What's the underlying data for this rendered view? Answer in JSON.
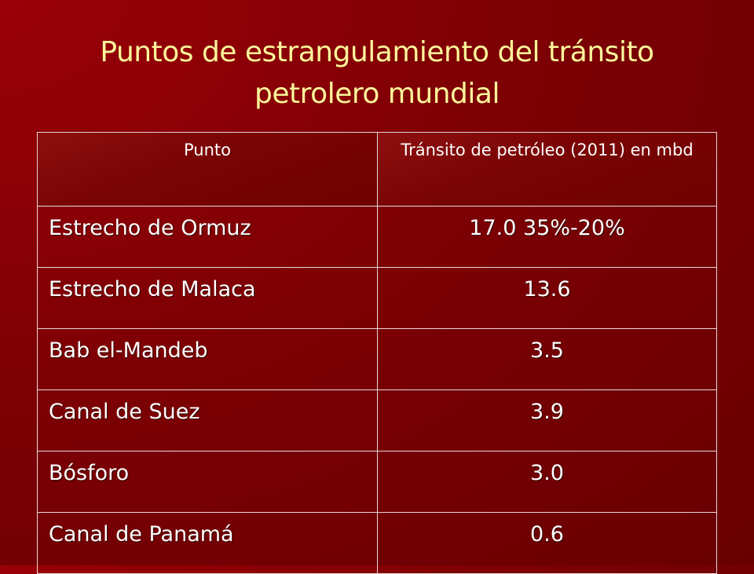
{
  "header": {
    "title": "Puntos de estrangulamiento del tránsito petrolero mundial"
  },
  "table": {
    "columns": [
      "Punto",
      "Tránsito de petróleo (2011) en mbd"
    ],
    "rows": [
      [
        "Estrecho de Ormuz",
        "17.0 35%-20%"
      ],
      [
        "Estrecho de Malaca",
        "13.6"
      ],
      [
        "Bab el-Mandeb",
        "3.5"
      ],
      [
        "Canal de Suez",
        "3.9"
      ],
      [
        "Bósforo",
        "3.0"
      ],
      [
        "Canal de Panamá",
        "0.6"
      ]
    ]
  }
}
